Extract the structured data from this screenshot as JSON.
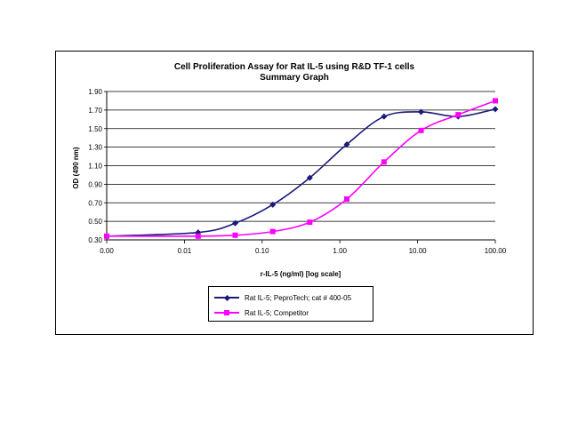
{
  "chart_data": {
    "type": "line",
    "title": "Cell Proliferation Assay for Rat IL-5 using R&D TF-1 cells",
    "subtitle": "Summary Graph",
    "xlabel": "r-IL-5 (ng/ml) [log scale]",
    "ylabel": "OD (490 nm)",
    "x_scale": "log",
    "xlim": [
      0.001,
      100
    ],
    "x_ticks": [
      "0.00",
      "0.01",
      "0.10",
      "1.00",
      "10.00",
      "100.00"
    ],
    "ylim": [
      0.3,
      1.9
    ],
    "y_ticks": [
      "0.30",
      "0.50",
      "0.70",
      "0.90",
      "1.10",
      "1.30",
      "1.50",
      "1.70",
      "1.90"
    ],
    "grid": "horizontal",
    "legend_position": "bottom",
    "series": [
      {
        "name": "Rat IL-5; PeproTech; cat # 400-05",
        "color": "#1a1a7a",
        "marker": "diamond",
        "x": [
          0.001,
          0.015,
          0.045,
          0.137,
          0.41,
          1.23,
          3.7,
          11.1,
          33.3,
          100
        ],
        "y": [
          0.34,
          0.38,
          0.48,
          0.68,
          0.97,
          1.33,
          1.63,
          1.68,
          1.63,
          1.71
        ]
      },
      {
        "name": "Rat IL-5; Competitor",
        "color": "#ff00ff",
        "marker": "square",
        "x": [
          0.001,
          0.015,
          0.045,
          0.137,
          0.41,
          1.23,
          3.7,
          11.1,
          33.3,
          100
        ],
        "y": [
          0.34,
          0.34,
          0.35,
          0.39,
          0.49,
          0.74,
          1.14,
          1.48,
          1.65,
          1.8
        ]
      }
    ]
  }
}
